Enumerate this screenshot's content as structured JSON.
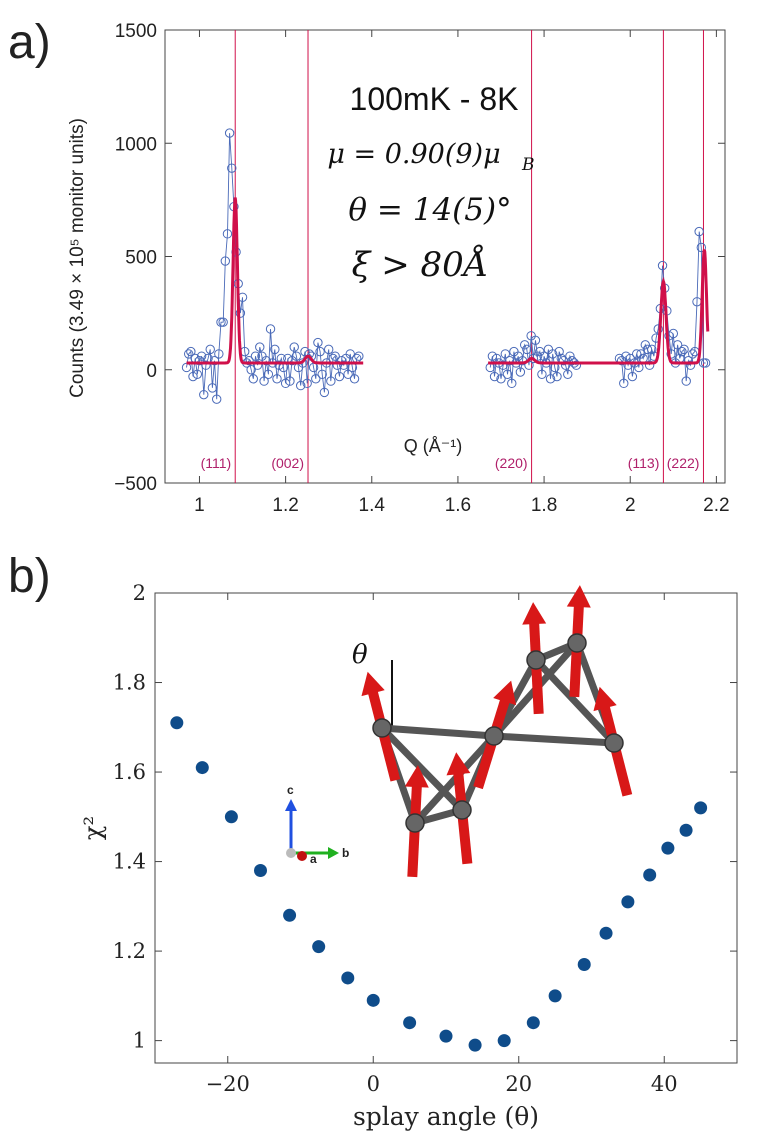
{
  "panel_a_label": "a)",
  "panel_b_label": "b)",
  "colors": {
    "data_blue": "#4a6ab8",
    "fit_red": "#d0104a",
    "peak_label": "#b0206a",
    "dot_blue": "#0f4c8a",
    "spin_red": "#d81818",
    "atom_gray": "#555555"
  },
  "annotations": {
    "temperature": "100mK - 8K",
    "moment": "μ = 0.90(9)μ",
    "moment_sub": "B",
    "angle": "θ = 14(5)°",
    "correlation": "ξ > 80Å"
  },
  "inset": {
    "theta_label": "θ",
    "axis_c": "c",
    "axis_a": "a",
    "axis_b": "b"
  },
  "chart_data": [
    {
      "type": "scatter",
      "title": "",
      "xlabel": "Q (Å⁻¹)",
      "ylabel": "Counts (3.49 × 10⁵ monitor units)",
      "xlim": [
        0.92,
        2.22
      ],
      "ylim": [
        -500,
        1500
      ],
      "xticks": [
        1,
        1.2,
        1.4,
        1.6,
        1.8,
        2,
        2.2
      ],
      "xtick_labels": [
        "1",
        "1.2",
        "1.4",
        "1.6",
        "1.8",
        "2",
        "2.2"
      ],
      "yticks": [
        -500,
        0,
        500,
        1000,
        1500
      ],
      "ytick_labels": [
        "−500",
        "0",
        "500",
        "1000",
        "1500"
      ],
      "peaks": [
        {
          "label": "(111)",
          "q": 1.083
        },
        {
          "label": "(002)",
          "q": 1.252
        },
        {
          "label": "(220)",
          "q": 1.771
        },
        {
          "label": "(113)",
          "q": 2.077
        },
        {
          "label": "(222)",
          "q": 2.17
        }
      ],
      "fit": {
        "baseline": 30,
        "components": [
          {
            "center": 1.083,
            "amp": 730,
            "sigma": 0.005
          },
          {
            "center": 1.252,
            "amp": 30,
            "sigma": 0.007
          },
          {
            "center": 1.771,
            "amp": 20,
            "sigma": 0.007
          },
          {
            "center": 2.077,
            "amp": 360,
            "sigma": 0.006
          },
          {
            "center": 2.172,
            "amp": 500,
            "sigma": 0.005
          }
        ]
      },
      "segments": [
        {
          "x": [
            0.97,
            0.975,
            0.98,
            0.985,
            0.99,
            0.995,
            1.0,
            1.005,
            1.01,
            1.015,
            1.02,
            1.025,
            1.03,
            1.035,
            1.04,
            1.045,
            1.05,
            1.055,
            1.06,
            1.065,
            1.07,
            1.075,
            1.08,
            1.085,
            1.09,
            1.095,
            1.1,
            1.105,
            1.11,
            1.115,
            1.12,
            1.125,
            1.13,
            1.135,
            1.14,
            1.145,
            1.15,
            1.155,
            1.16,
            1.165,
            1.17,
            1.175,
            1.18,
            1.185,
            1.19,
            1.195,
            1.2,
            1.205,
            1.21,
            1.215,
            1.22,
            1.225,
            1.23,
            1.235,
            1.24,
            1.245,
            1.25,
            1.255,
            1.26,
            1.265,
            1.27,
            1.275,
            1.28,
            1.285,
            1.29,
            1.295,
            1.3,
            1.305,
            1.31,
            1.315,
            1.32,
            1.325,
            1.33,
            1.335,
            1.34,
            1.345,
            1.35,
            1.355,
            1.36,
            1.365,
            1.37
          ],
          "y": [
            10,
            70,
            80,
            -30,
            50,
            -20,
            40,
            60,
            -110,
            20,
            50,
            90,
            -80,
            40,
            -130,
            70,
            210,
            210,
            480,
            600,
            1045,
            890,
            720,
            520,
            380,
            250,
            320,
            80,
            30,
            40,
            0,
            -40,
            60,
            20,
            100,
            60,
            -50,
            40,
            -20,
            180,
            30,
            90,
            -40,
            20,
            50,
            10,
            -60,
            50,
            -50,
            40,
            100,
            60,
            10,
            -70,
            30,
            80,
            -60,
            70,
            60,
            10,
            -40,
            120,
            80,
            -20,
            -100,
            30,
            90,
            -50,
            50,
            60,
            20,
            -30,
            40,
            20,
            50,
            -20,
            70,
            10,
            -40,
            50,
            60
          ]
        },
        {
          "x": [
            1.675,
            1.68,
            1.685,
            1.69,
            1.695,
            1.7,
            1.705,
            1.71,
            1.715,
            1.72,
            1.725,
            1.73,
            1.735,
            1.74,
            1.745,
            1.75,
            1.755,
            1.76,
            1.765,
            1.77,
            1.775,
            1.78,
            1.785,
            1.79,
            1.795,
            1.8,
            1.805,
            1.81,
            1.815,
            1.82,
            1.825,
            1.83,
            1.835,
            1.84,
            1.845,
            1.85,
            1.855,
            1.86,
            1.865,
            1.87,
            1.875
          ],
          "y": [
            10,
            60,
            -30,
            50,
            30,
            -40,
            20,
            70,
            -20,
            40,
            -60,
            80,
            30,
            60,
            -10,
            40,
            110,
            90,
            20,
            150,
            50,
            130,
            60,
            80,
            -20,
            60,
            30,
            90,
            -40,
            70,
            10,
            -30,
            80,
            50,
            40,
            20,
            -20,
            60,
            40,
            30,
            20
          ]
        },
        {
          "x": [
            1.975,
            1.98,
            1.985,
            1.99,
            1.995,
            2.0,
            2.005,
            2.01,
            2.015,
            2.02,
            2.025,
            2.03,
            2.035,
            2.04,
            2.045,
            2.05,
            2.055,
            2.06,
            2.065,
            2.07,
            2.075,
            2.08,
            2.085,
            2.09,
            2.095,
            2.1,
            2.105,
            2.11,
            2.115,
            2.12,
            2.125,
            2.13,
            2.135,
            2.14,
            2.145,
            2.15,
            2.155,
            2.16,
            2.165,
            2.17,
            2.175
          ],
          "y": [
            50,
            40,
            -60,
            60,
            20,
            50,
            -30,
            30,
            70,
            10,
            70,
            50,
            110,
            90,
            20,
            90,
            60,
            140,
            180,
            270,
            460,
            360,
            260,
            150,
            70,
            160,
            30,
            110,
            50,
            80,
            90,
            -50,
            40,
            20,
            70,
            80,
            300,
            610,
            540,
            30,
            30
          ]
        }
      ]
    },
    {
      "type": "scatter",
      "title": "",
      "xlabel": "splay angle (θ)",
      "ylabel": "χ²",
      "xlim": [
        -30,
        50
      ],
      "ylim": [
        0.95,
        2.0
      ],
      "xticks": [
        -20,
        0,
        20,
        40
      ],
      "xtick_labels": [
        "−20",
        "0",
        "20",
        "40"
      ],
      "yticks": [
        1,
        1.2,
        1.4,
        1.6,
        1.8,
        2
      ],
      "ytick_labels": [
        "1",
        "1.2",
        "1.4",
        "1.6",
        "1.8",
        "2"
      ],
      "x": [
        -27,
        -23.5,
        -19.5,
        -15.5,
        -11.5,
        -7.5,
        -3.5,
        0,
        5,
        10,
        14,
        18,
        22,
        25,
        29,
        32,
        35,
        38,
        40.5,
        43,
        45
      ],
      "y": [
        1.71,
        1.61,
        1.5,
        1.38,
        1.28,
        1.21,
        1.14,
        1.09,
        1.04,
        1.01,
        0.99,
        1.0,
        1.04,
        1.1,
        1.17,
        1.24,
        1.31,
        1.37,
        1.43,
        1.47,
        1.52
      ]
    }
  ]
}
